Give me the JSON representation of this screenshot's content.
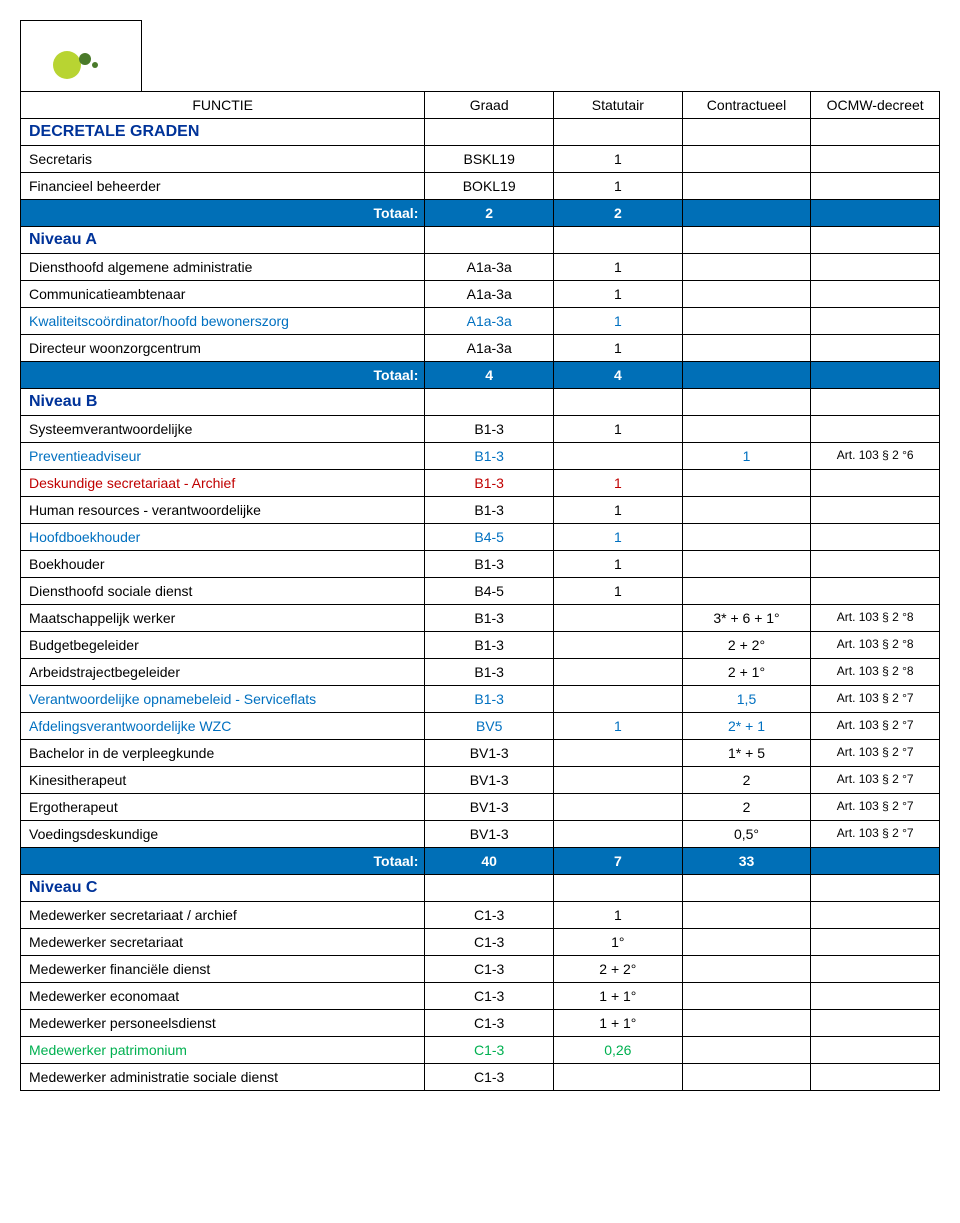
{
  "headers": {
    "functie": "FUNCTIE",
    "graad": "Graad",
    "statutair": "Statutair",
    "contractueel": "Contractueel",
    "decreet": "OCMW-decreet"
  },
  "totaal_label": "Totaal:",
  "sections": [
    {
      "title": "DECRETALE GRADEN",
      "title_color": "#003399",
      "rows": [
        {
          "func": "Secretaris",
          "grade": "BSKL19",
          "stat": "1",
          "contr": "",
          "decree": "",
          "color": ""
        },
        {
          "func": "Financieel beheerder",
          "grade": "BOKL19",
          "stat": "1",
          "contr": "",
          "decree": "",
          "color": ""
        }
      ],
      "totaal": {
        "a": "2",
        "b": "2",
        "c": ""
      }
    },
    {
      "title": "Niveau A",
      "title_color": "#003399",
      "rows": [
        {
          "func": "Diensthoofd algemene administratie",
          "grade": "A1a-3a",
          "stat": "1",
          "contr": "",
          "decree": "",
          "color": ""
        },
        {
          "func": "Communicatieambtenaar",
          "grade": "A1a-3a",
          "stat": "1",
          "contr": "",
          "decree": "",
          "color": ""
        },
        {
          "func": "Kwaliteitscoördinator/hoofd bewonerszorg",
          "grade": "A1a-3a",
          "stat": "1",
          "contr": "",
          "decree": "",
          "color": "#0070c0"
        },
        {
          "func": "Directeur woonzorgcentrum",
          "grade": "A1a-3a",
          "stat": "1",
          "contr": "",
          "decree": "",
          "color": ""
        }
      ],
      "totaal": {
        "a": "4",
        "b": "4",
        "c": ""
      }
    },
    {
      "title": "Niveau B",
      "title_color": "#003399",
      "rows": [
        {
          "func": "Systeemverantwoordelijke",
          "grade": "B1-3",
          "stat": "1",
          "contr": "",
          "decree": "",
          "color": ""
        },
        {
          "func": "Preventieadviseur",
          "grade": "B1-3",
          "stat": "",
          "contr": "1",
          "decree": "Art. 103 § 2 °6",
          "color": "#0070c0"
        },
        {
          "func": "Deskundige secretariaat - Archief",
          "grade": "B1-3",
          "stat": "1",
          "contr": "",
          "decree": "",
          "color": "#c00000"
        },
        {
          "func": "Human resources - verantwoordelijke",
          "grade": "B1-3",
          "stat": "1",
          "contr": "",
          "decree": "",
          "color": ""
        },
        {
          "func": "Hoofdboekhouder",
          "grade": "B4-5",
          "stat": "1",
          "contr": "",
          "decree": "",
          "color": "#0070c0"
        },
        {
          "func": "Boekhouder",
          "grade": "B1-3",
          "stat": "1",
          "contr": "",
          "decree": "",
          "color": ""
        },
        {
          "func": "Diensthoofd sociale dienst",
          "grade": "B4-5",
          "stat": "1",
          "contr": "",
          "decree": "",
          "color": ""
        },
        {
          "func": "Maatschappelijk werker",
          "grade": "B1-3",
          "stat": "",
          "contr": "3* + 6 + 1°",
          "decree": "Art. 103 § 2 °8",
          "color": ""
        },
        {
          "func": "Budgetbegeleider",
          "grade": "B1-3",
          "stat": "",
          "contr": "2 + 2°",
          "decree": "Art. 103 § 2 °8",
          "color": ""
        },
        {
          "func": "Arbeidstrajectbegeleider",
          "grade": "B1-3",
          "stat": "",
          "contr": "2 + 1°",
          "decree": "Art. 103 § 2 °8",
          "color": ""
        },
        {
          "func": "Verantwoordelijke opnamebeleid - Serviceflats",
          "grade": "B1-3",
          "stat": "",
          "contr": "1,5",
          "decree": "Art. 103 § 2 °7",
          "color": "#0070c0"
        },
        {
          "func": "Afdelingsverantwoordelijke WZC",
          "grade": "BV5",
          "stat": "1",
          "contr": "2* + 1",
          "decree": "Art. 103 § 2 °7",
          "color": "#0070c0"
        },
        {
          "func": "Bachelor in de verpleegkunde",
          "grade": "BV1-3",
          "stat": "",
          "contr": "1* + 5",
          "decree": "Art. 103 § 2 °7",
          "color": ""
        },
        {
          "func": "Kinesitherapeut",
          "grade": "BV1-3",
          "stat": "",
          "contr": "2",
          "decree": "Art. 103 § 2 °7",
          "color": ""
        },
        {
          "func": "Ergotherapeut",
          "grade": "BV1-3",
          "stat": "",
          "contr": "2",
          "decree": "Art. 103 § 2 °7",
          "color": ""
        },
        {
          "func": "Voedingsdeskundige",
          "grade": "BV1-3",
          "stat": "",
          "contr": "0,5°",
          "decree": "Art. 103 § 2 °7",
          "color": ""
        }
      ],
      "totaal": {
        "a": "40",
        "b": "7",
        "c": "33"
      }
    },
    {
      "title": "Niveau C",
      "title_color": "#003399",
      "rows": [
        {
          "func": "Medewerker secretariaat / archief",
          "grade": "C1-3",
          "stat": "1",
          "contr": "",
          "decree": "",
          "color": ""
        },
        {
          "func": "Medewerker secretariaat",
          "grade": "C1-3",
          "stat": "1°",
          "contr": "",
          "decree": "",
          "color": ""
        },
        {
          "func": "Medewerker financiële dienst",
          "grade": "C1-3",
          "stat": "2 + 2°",
          "contr": "",
          "decree": "",
          "color": ""
        },
        {
          "func": "Medewerker economaat",
          "grade": "C1-3",
          "stat": "1 + 1°",
          "contr": "",
          "decree": "",
          "color": ""
        },
        {
          "func": "Medewerker personeelsdienst",
          "grade": "C1-3",
          "stat": "1 + 1°",
          "contr": "",
          "decree": "",
          "color": ""
        },
        {
          "func": "Medewerker patrimonium",
          "grade": "C1-3",
          "stat": "0,26",
          "contr": "",
          "decree": "",
          "color": "#00b050"
        },
        {
          "func": "Medewerker administratie sociale dienst",
          "grade": "C1-3",
          "stat": "",
          "contr": "",
          "decree": "",
          "color": ""
        }
      ],
      "totaal": null
    }
  ],
  "colors": {
    "header_blue": "#003399",
    "totaal_bg": "#006fb7",
    "totaal_fg": "#ffffff",
    "accent_blue": "#0070c0",
    "accent_red": "#c00000",
    "accent_green": "#00b050"
  }
}
